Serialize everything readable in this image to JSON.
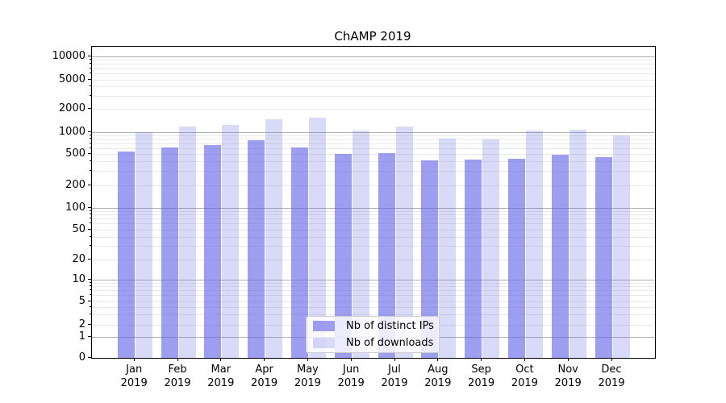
{
  "figure": {
    "title": "ChAMP 2019"
  },
  "chart_data": {
    "type": "bar",
    "title": "ChAMP 2019",
    "months": [
      "Jan",
      "Feb",
      "Mar",
      "Apr",
      "May",
      "Jun",
      "Jul",
      "Aug",
      "Sep",
      "Oct",
      "Nov",
      "Dec"
    ],
    "year": "2019",
    "categories": [
      "Jan 2019",
      "Feb 2019",
      "Mar 2019",
      "Apr 2019",
      "May 2019",
      "Jun 2019",
      "Jul 2019",
      "Aug 2019",
      "Sep 2019",
      "Oct 2019",
      "Nov 2019",
      "Dec 2019"
    ],
    "series": [
      {
        "name": "Nb of distinct IPs",
        "color": "#9e9ef1",
        "fill": "rgba(98,98,232,0.62)",
        "values": [
          540,
          620,
          665,
          780,
          620,
          505,
          520,
          415,
          433,
          443,
          490,
          465
        ]
      },
      {
        "name": "Nb of downloads",
        "color": "#d9d9f8",
        "fill": "rgba(110,110,228,0.26)",
        "values": [
          1010,
          1190,
          1250,
          1480,
          1560,
          1050,
          1190,
          820,
          800,
          1050,
          1085,
          905
        ]
      }
    ],
    "yscale": "symlog",
    "ylim": [
      0,
      13000
    ],
    "y_ticks": [
      10000,
      5000,
      2000,
      1000,
      500,
      200,
      100,
      50,
      20,
      10,
      5,
      2,
      1,
      0
    ],
    "grid": {
      "orientation": "horizontal",
      "major_color": "#b0b0b0",
      "minor_color": "#e9e9e9"
    },
    "axis_color": "#000000",
    "background_color": "#ffffff",
    "legend": {
      "location": "inside lower-center",
      "entries": [
        "Nb of distinct IPs",
        "Nb of downloads"
      ]
    }
  }
}
